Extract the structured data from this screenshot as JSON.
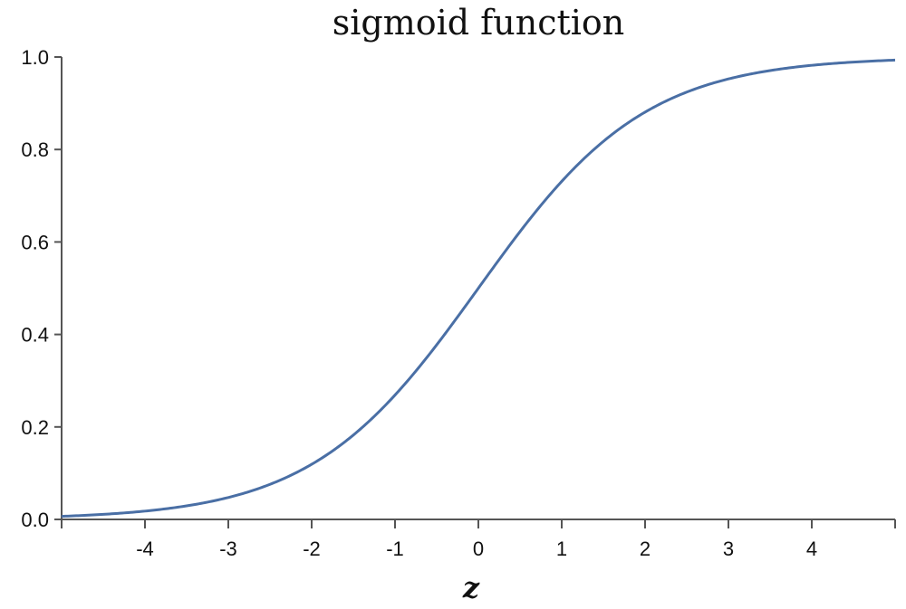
{
  "chart_data": {
    "type": "line",
    "title": "sigmoid function",
    "xlabel": "z",
    "ylabel": "",
    "xlim": [
      -5,
      5
    ],
    "ylim": [
      0,
      1
    ],
    "grid": false,
    "x_ticks": [
      -4,
      -3,
      -2,
      -1,
      0,
      1,
      2,
      3,
      4
    ],
    "x_tick_labels": [
      "-4",
      "-3",
      "-2",
      "-1",
      "0",
      "1",
      "2",
      "3",
      "4"
    ],
    "y_ticks": [
      0.0,
      0.2,
      0.4,
      0.6,
      0.8,
      1.0
    ],
    "y_tick_labels": [
      "0.0",
      "0.2",
      "0.4",
      "0.6",
      "0.8",
      "1.0"
    ],
    "series": [
      {
        "color": "#4a6fa5",
        "x": [
          -5,
          -4.5,
          -4,
          -3.5,
          -3,
          -2.5,
          -2,
          -1.5,
          -1,
          -0.5,
          0,
          0.5,
          1,
          1.5,
          2,
          2.5,
          3,
          3.5,
          4,
          4.5,
          5
        ],
        "y": [
          0.0067,
          0.011,
          0.018,
          0.0293,
          0.0474,
          0.0759,
          0.1192,
          0.1824,
          0.2689,
          0.3775,
          0.5,
          0.6225,
          0.7311,
          0.8176,
          0.8808,
          0.9241,
          0.9526,
          0.9707,
          0.982,
          0.989,
          0.9933
        ]
      }
    ]
  }
}
